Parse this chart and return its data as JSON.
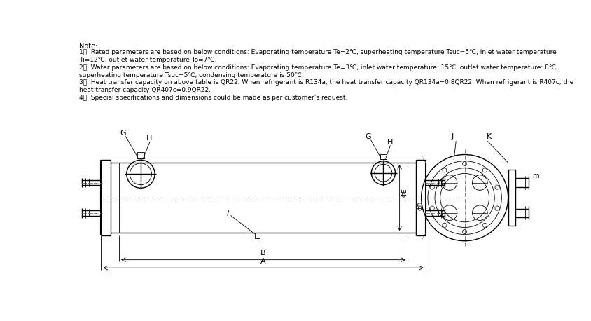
{
  "note_title": "Note:",
  "notes": [
    "1．  Rated parameters are based on below conditions: Evaporating temperature Te=2℃, superheating temperature Tsuc=5℃, inlet water temperature Ti=12℃, outlet water temperature To=7℃.",
    "2．  Water parameters are based on below conditions: Evaporating temperature Te=3℃, inlet water temperature: 15℃, outlet water temperature: 8℃,",
    "superheating temperature Tsuc=5℃, condensing temperature is 50℃.",
    "3．  Heat transfer capacity on above table is QR22. When refrigerant is R134a, the heat transfer capacity QR134a=0.8QR22. When refrigerant is R407c, the",
    "heat transfer capacity QR407c=0.9QR22.",
    "4．  Special specifications and dimensions could be made as per customer’s request."
  ],
  "bg_color": "#ffffff",
  "line_color": "#000000",
  "text_color": "#000000"
}
